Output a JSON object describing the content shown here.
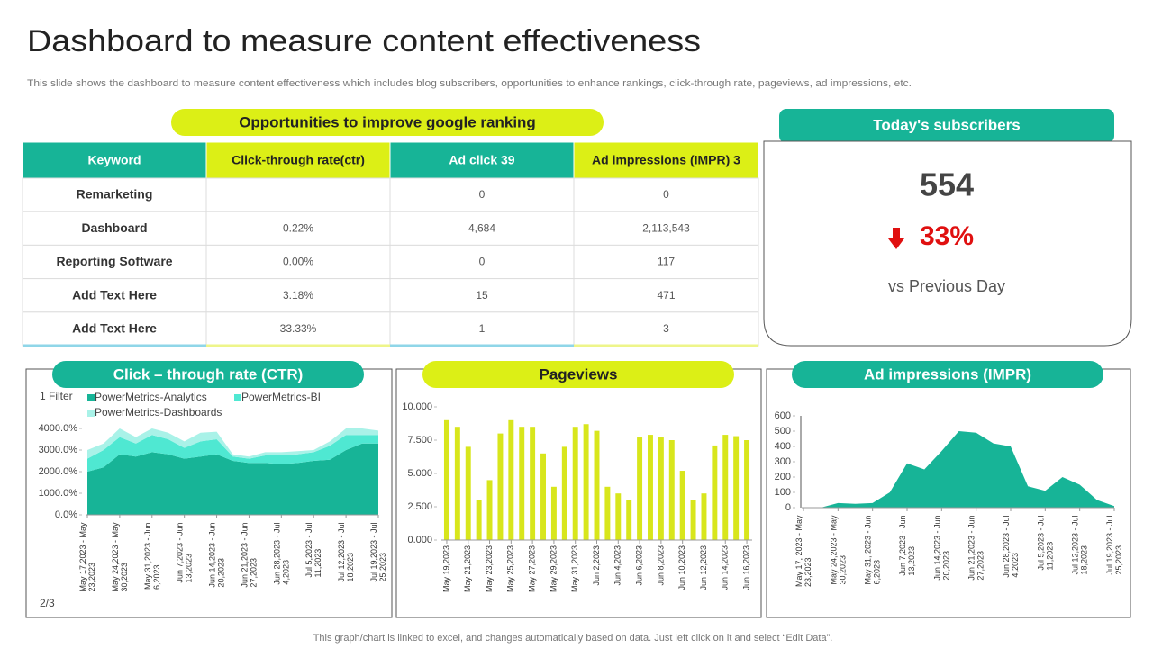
{
  "title": "Dashboard to measure content effectiveness",
  "subtitle": "This slide shows the dashboard to measure content effectiveness which includes blog subscribers, opportunities to enhance rankings, click-through rate, pageviews, ad impressions, etc.",
  "table": {
    "title": "Opportunities to improve google ranking",
    "header": [
      "Keyword",
      "Click-through rate(ctr)",
      "Ad click 39",
      "Ad impressions (IMPR)  3"
    ],
    "rows": [
      [
        "Remarketing",
        null,
        "0",
        "0"
      ],
      [
        "Dashboard",
        "0.22%",
        "4,684",
        "2,113,543"
      ],
      [
        "Reporting Software",
        "0.00%",
        "0",
        "117"
      ],
      [
        "Add Text Here",
        "3.18%",
        "15",
        "471"
      ],
      [
        "Add Text Here",
        "33.33%",
        "1",
        "3"
      ]
    ]
  },
  "subscribers": {
    "title": "Today's subscribers",
    "count": 554,
    "change": "33%",
    "caption": "vs Previous Day"
  },
  "footer": "This graph/chart is linked to excel,  and changes automatically based on data. Just left click on it and select “Edit Data”.",
  "chart_data": [
    {
      "type": "area",
      "stacked": true,
      "title": "Click – through rate (CTR)",
      "filter": "1 Filter",
      "page": "2/3",
      "categories": [
        "May 17,2023 - May 23,2023",
        null,
        "May 24,2023 - May 30,2023",
        null,
        "May 31,2023 - Jun 6,2023",
        null,
        "Jun 7,2023 - Jun 13,2023",
        null,
        "Jun 14,2023 - Jun 20,2023",
        null,
        "Jun 21,2023 - Jun 27,2023",
        null,
        "Jun 28,2023 - Jul 4,2023",
        null,
        "Jul 5,2023 - Jul 11,2023",
        null,
        "Jul 12,2023 - Jul 18,2023",
        null,
        "Jul 19,2023 - Jul 25,2023"
      ],
      "series": [
        {
          "name": "PowerMetrics-Analytics",
          "color": "#17b497",
          "values": [
            2000,
            2200,
            2800,
            2700,
            2900,
            2800,
            2600,
            2700,
            2800,
            2500,
            2400,
            2400,
            2350,
            2400,
            2500,
            2550,
            3000,
            3300,
            3300
          ]
        },
        {
          "name": "PowerMetrics-BI",
          "color": "#4fe8d2",
          "values": [
            600,
            800,
            800,
            600,
            800,
            700,
            500,
            700,
            700,
            200,
            200,
            350,
            400,
            400,
            400,
            650,
            700,
            400,
            400
          ]
        },
        {
          "name": "PowerMetrics-Dashboards",
          "color": "#a9f2e8",
          "values": [
            400,
            300,
            400,
            300,
            300,
            300,
            300,
            400,
            350,
            100,
            100,
            150,
            150,
            150,
            100,
            200,
            300,
            300,
            200
          ]
        }
      ],
      "ylim": [
        0,
        4000
      ],
      "yticks": [
        {
          "value": 0,
          "label": "0.0%"
        },
        {
          "value": 1000,
          "label": "1000.0%"
        },
        {
          "value": 2000,
          "label": "2000.0%"
        },
        {
          "value": 3000,
          "label": "3000.0%"
        },
        {
          "value": 4000,
          "label": "4000.0%"
        }
      ]
    },
    {
      "type": "bar",
      "title": "Pageviews",
      "color": "#d8e61c",
      "categories": [
        "May 19,2023",
        null,
        "May 21,2023",
        null,
        "May 23,2023",
        null,
        "May 25,2023",
        null,
        "May 27,2023",
        null,
        "May 29,2023",
        null,
        "May 31,2023",
        null,
        "Jun 2,2023",
        null,
        "Jun 4,2023",
        null,
        "Jun 6,2023",
        null,
        "Jun 8,2023",
        null,
        "Jun 10,2023",
        null,
        "Jun 12,2023",
        null,
        "Jun 14,2023",
        null,
        "Jun 16,2023"
      ],
      "values": [
        9,
        8.5,
        7,
        3,
        4.5,
        8,
        9,
        8.5,
        8.5,
        6.5,
        4,
        7,
        8.5,
        8.7,
        8.2,
        4,
        3.5,
        3,
        7.7,
        7.9,
        7.7,
        7.5,
        5.2,
        3,
        3.5,
        7.1,
        7.9,
        7.8,
        7.5
      ],
      "ylim": [
        0,
        10
      ],
      "yticks": [
        {
          "value": 0,
          "label": "0.000"
        },
        {
          "value": 2.5,
          "label": "2.500"
        },
        {
          "value": 5,
          "label": "5.000"
        },
        {
          "value": 7.5,
          "label": "7.500"
        },
        {
          "value": 10,
          "label": "10.000"
        }
      ]
    },
    {
      "type": "area",
      "title": "Ad impressions (IMPR)",
      "color": "#17b497",
      "categories": [
        "May 17, 2023 - May 23,2023",
        null,
        "May 24,2023 - May 30,2023",
        null,
        "May 31, 2023 - Jun 6,2023",
        null,
        "Jun 7,2023 - Jun 13,2023",
        null,
        "Jun 14,2023 - Jun 20,2023",
        null,
        "Jun 21,2023 - Jun 27,2023",
        null,
        "Jun 28,2023 - Jul 4,2023",
        null,
        "Jul 5,2023 - Jul 11,2023",
        null,
        "Jul 12,2023 - Jul 18,2023",
        null,
        "Jul 19,2023 - Jul 25,2023"
      ],
      "values": [
        0,
        0,
        30,
        25,
        30,
        100,
        290,
        250,
        370,
        500,
        490,
        420,
        400,
        140,
        110,
        200,
        150,
        50,
        10
      ],
      "ylim": [
        0,
        600
      ],
      "yticks": [
        0,
        100,
        200,
        300,
        400,
        500,
        600
      ]
    }
  ]
}
